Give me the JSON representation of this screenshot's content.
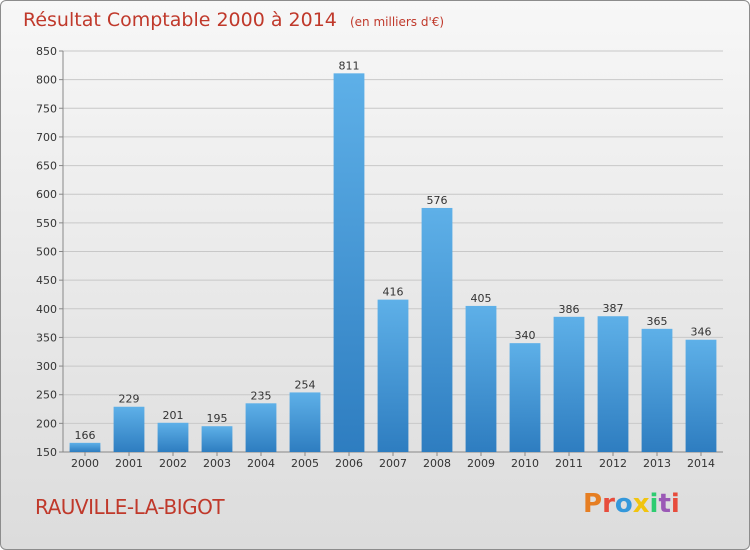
{
  "header": {
    "title": "Résultat Comptable 2000 à 2014",
    "subtitle": "(en milliers d'€)"
  },
  "footer": {
    "commune": "RAUVILLE-LA-BIGOT",
    "logo": "Proxiti"
  },
  "colors": {
    "bar_light": "#5eb0e8",
    "bar_dark": "#2e7dc0",
    "title": "#c0392b",
    "logo": [
      "#e67e22",
      "#e74c3c",
      "#3498db",
      "#f1c40f",
      "#2ecc71",
      "#9b59b6",
      "#e74c3c"
    ]
  },
  "chart_data": {
    "type": "bar",
    "title": "Résultat Comptable 2000 à 2014",
    "subtitle": "(en milliers d'€)",
    "categories": [
      "2000",
      "2001",
      "2002",
      "2003",
      "2004",
      "2005",
      "2006",
      "2007",
      "2008",
      "2009",
      "2010",
      "2011",
      "2012",
      "2013",
      "2014"
    ],
    "values": [
      166,
      229,
      201,
      195,
      235,
      254,
      811,
      416,
      576,
      405,
      340,
      386,
      387,
      365,
      346
    ],
    "ylim": [
      150,
      850
    ],
    "yticks": [
      150,
      200,
      250,
      300,
      350,
      400,
      450,
      500,
      550,
      600,
      650,
      700,
      750,
      800,
      850
    ],
    "grid": true,
    "data_labels": true
  }
}
